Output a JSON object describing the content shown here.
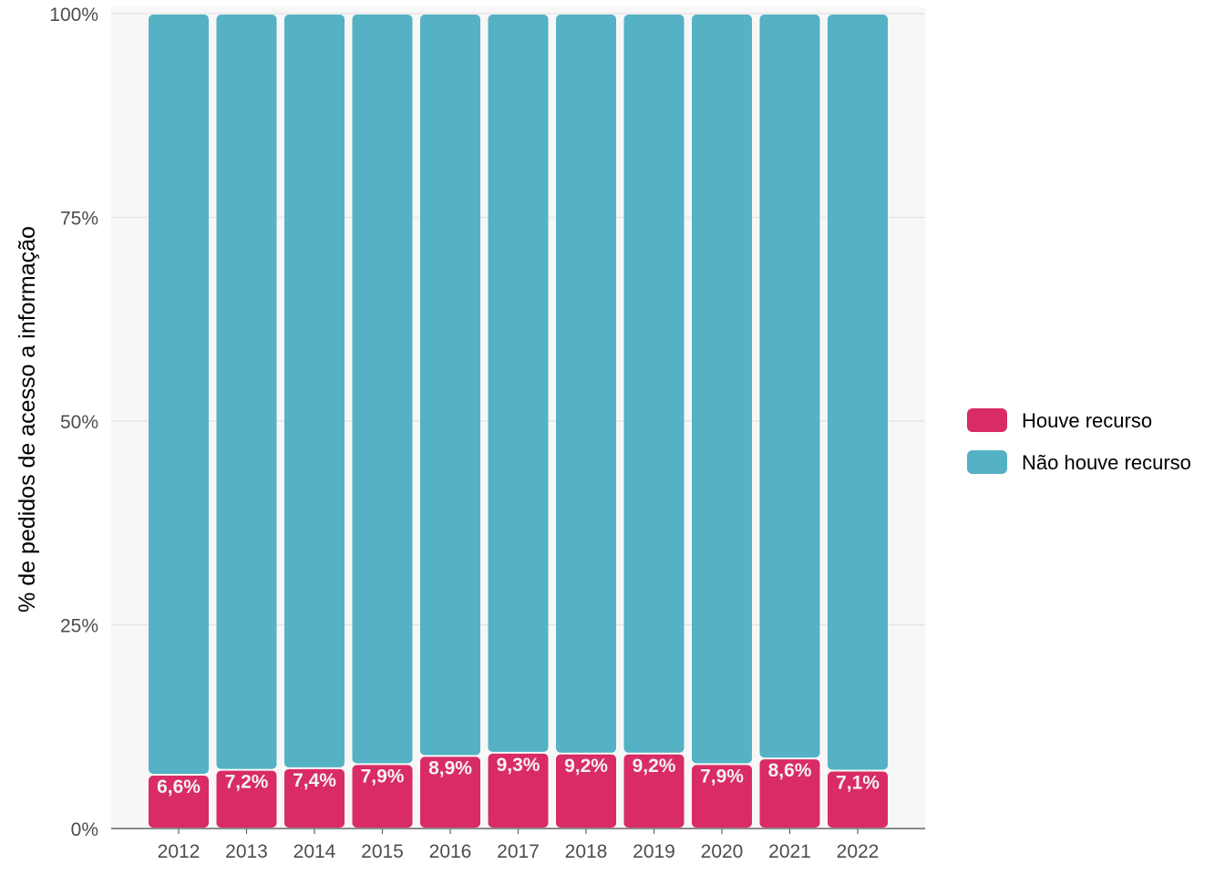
{
  "chart_data": {
    "type": "bar",
    "stacked": true,
    "normalized": true,
    "categories": [
      "2012",
      "2013",
      "2014",
      "2015",
      "2016",
      "2017",
      "2018",
      "2019",
      "2020",
      "2021",
      "2022"
    ],
    "series": [
      {
        "name": "Houve recurso",
        "color": "#d92b65",
        "values": [
          6.6,
          7.2,
          7.4,
          7.9,
          8.9,
          9.3,
          9.2,
          9.2,
          7.9,
          8.6,
          7.1
        ],
        "labels": [
          "6,6%",
          "7,2%",
          "7,4%",
          "7,9%",
          "8,9%",
          "9,3%",
          "9,2%",
          "9,2%",
          "7,9%",
          "8,6%",
          "7,1%"
        ]
      },
      {
        "name": "Não houve recurso",
        "color": "#54b2c4",
        "values": [
          93.4,
          92.8,
          92.6,
          92.1,
          91.1,
          90.7,
          90.8,
          90.8,
          92.1,
          91.4,
          92.9
        ]
      }
    ],
    "title": "",
    "xlabel": "",
    "ylabel": "% de pedidos de acesso a informação",
    "ylim": [
      0,
      100
    ],
    "yticks": [
      0,
      25,
      50,
      75,
      100
    ],
    "ytick_labels": [
      "0%",
      "25%",
      "50%",
      "75%",
      "100%"
    ],
    "grid": true,
    "panel_background": "#f7f7f7",
    "legend": {
      "placement": "right"
    }
  }
}
